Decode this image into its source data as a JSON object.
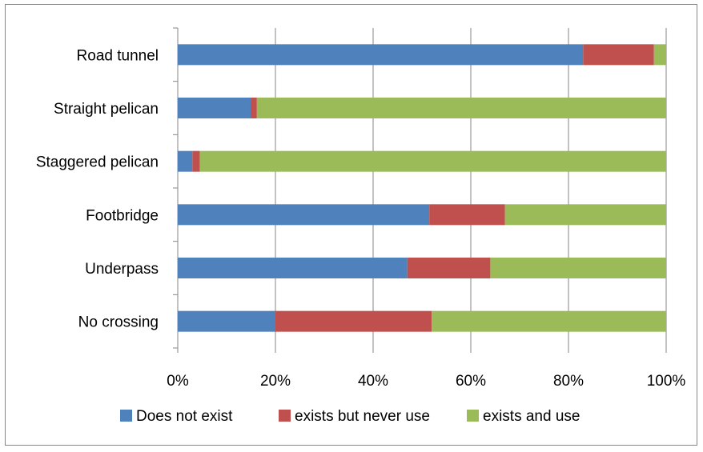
{
  "chart_data": {
    "type": "bar",
    "orientation": "horizontal",
    "stacked": "percent",
    "categories": [
      "Road tunnel",
      "Straight pelican",
      "Staggered pelican",
      "Footbridge",
      "Underpass",
      "No crossing"
    ],
    "series": [
      {
        "name": "Does not exist",
        "color": "#4f81bd",
        "values": [
          83,
          15,
          3,
          51.5,
          47,
          20
        ]
      },
      {
        "name": "exists but never use",
        "color": "#c0504d",
        "values": [
          14.5,
          1.2,
          1.5,
          15.5,
          17,
          32
        ]
      },
      {
        "name": "exists and use",
        "color": "#9bbb59",
        "values": [
          2.5,
          83.8,
          95.5,
          33,
          36,
          48
        ]
      }
    ],
    "x_ticks": [
      "0%",
      "20%",
      "40%",
      "60%",
      "80%",
      "100%"
    ],
    "xlim": [
      0,
      100
    ],
    "grid": "vertical",
    "legend_position": "bottom",
    "title": "",
    "xlabel": "",
    "ylabel": ""
  }
}
